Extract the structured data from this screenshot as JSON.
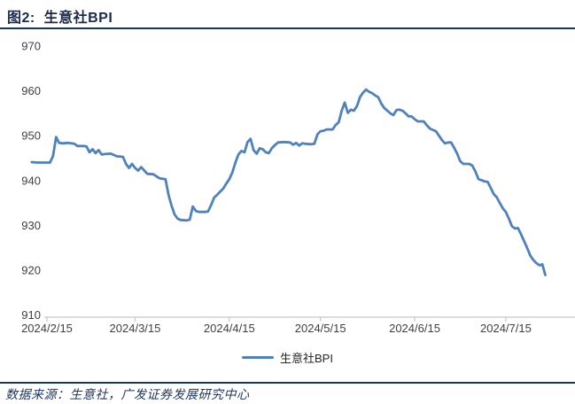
{
  "figure": {
    "title": "图2:  生意社BPI"
  },
  "legend": {
    "label": "生意社BPI"
  },
  "footer": {
    "source": "数据来源：生意社，广发证券发展研究中心"
  },
  "colors": {
    "line": "#4f81bd",
    "title_text": "#1b2a4e",
    "rule": "#17375e",
    "axis": "#c8c8c8",
    "tick_label": "#3f3f3f",
    "footer_text": "#1f3864"
  },
  "chart_data": {
    "type": "line",
    "title": "图2: 生意社BPI",
    "xlabel": "",
    "ylabel": "",
    "ylim": [
      910,
      970
    ],
    "y_ticks": [
      910,
      920,
      930,
      940,
      950,
      960,
      970
    ],
    "x_ticks": [
      "2024/2/15",
      "2024/3/15",
      "2024/4/15",
      "2024/5/15",
      "2024/6/15",
      "2024/7/15"
    ],
    "grid": false,
    "legend_position": "bottom",
    "series": [
      {
        "name": "生意社BPI",
        "points": [
          [
            "2024/2/10",
            944.1
          ],
          [
            "2024/2/12",
            944.0
          ],
          [
            "2024/2/14",
            944.0
          ],
          [
            "2024/2/16",
            944.0
          ],
          [
            "2024/2/17",
            945.5
          ],
          [
            "2024/2/18",
            949.7
          ],
          [
            "2024/2/19",
            948.4
          ],
          [
            "2024/2/20",
            948.3
          ],
          [
            "2024/2/22",
            948.4
          ],
          [
            "2024/2/24",
            948.2
          ],
          [
            "2024/2/25",
            947.7
          ],
          [
            "2024/2/27",
            947.7
          ],
          [
            "2024/2/28",
            947.6
          ],
          [
            "2024/2/29",
            946.3
          ],
          [
            "2024/3/1",
            947.0
          ],
          [
            "2024/3/2",
            946.1
          ],
          [
            "2024/3/3",
            946.8
          ],
          [
            "2024/3/4",
            945.8
          ],
          [
            "2024/3/5",
            945.9
          ],
          [
            "2024/3/7",
            946.0
          ],
          [
            "2024/3/9",
            945.4
          ],
          [
            "2024/3/11",
            945.3
          ],
          [
            "2024/3/12",
            943.7
          ],
          [
            "2024/3/13",
            942.8
          ],
          [
            "2024/3/14",
            943.7
          ],
          [
            "2024/3/15",
            942.8
          ],
          [
            "2024/3/16",
            942.2
          ],
          [
            "2024/3/17",
            943.0
          ],
          [
            "2024/3/19",
            941.5
          ],
          [
            "2024/3/21",
            941.4
          ],
          [
            "2024/3/23",
            940.5
          ],
          [
            "2024/3/25",
            940.3
          ],
          [
            "2024/3/26",
            936.8
          ],
          [
            "2024/3/27",
            934.4
          ],
          [
            "2024/3/28",
            932.4
          ],
          [
            "2024/3/29",
            931.5
          ],
          [
            "2024/3/30",
            931.2
          ],
          [
            "2024/4/1",
            931.1
          ],
          [
            "2024/4/2",
            931.3
          ],
          [
            "2024/4/3",
            934.2
          ],
          [
            "2024/4/4",
            933.2
          ],
          [
            "2024/4/5",
            933.0
          ],
          [
            "2024/4/7",
            933.0
          ],
          [
            "2024/4/8",
            933.1
          ],
          [
            "2024/4/9",
            934.5
          ],
          [
            "2024/4/10",
            936.2
          ],
          [
            "2024/4/11",
            936.8
          ],
          [
            "2024/4/13",
            938.2
          ],
          [
            "2024/4/14",
            939.3
          ],
          [
            "2024/4/15",
            940.3
          ],
          [
            "2024/4/16",
            941.8
          ],
          [
            "2024/4/17",
            944.0
          ],
          [
            "2024/4/18",
            945.8
          ],
          [
            "2024/4/19",
            946.6
          ],
          [
            "2024/4/20",
            946.3
          ],
          [
            "2024/4/21",
            948.6
          ],
          [
            "2024/4/22",
            949.3
          ],
          [
            "2024/4/23",
            946.8
          ],
          [
            "2024/4/24",
            946.0
          ],
          [
            "2024/4/25",
            947.2
          ],
          [
            "2024/4/26",
            947.0
          ],
          [
            "2024/4/27",
            946.3
          ],
          [
            "2024/4/28",
            946.1
          ],
          [
            "2024/4/29",
            947.2
          ],
          [
            "2024/4/30",
            947.9
          ],
          [
            "2024/5/1",
            948.5
          ],
          [
            "2024/5/3",
            948.6
          ],
          [
            "2024/5/5",
            948.5
          ],
          [
            "2024/5/6",
            948.0
          ],
          [
            "2024/5/7",
            948.4
          ],
          [
            "2024/5/8",
            947.8
          ],
          [
            "2024/5/9",
            948.3
          ],
          [
            "2024/5/10",
            948.2
          ],
          [
            "2024/5/12",
            948.1
          ],
          [
            "2024/5/13",
            948.2
          ],
          [
            "2024/5/14",
            950.3
          ],
          [
            "2024/5/15",
            951.0
          ],
          [
            "2024/5/16",
            951.1
          ],
          [
            "2024/5/17",
            951.4
          ],
          [
            "2024/5/19",
            951.4
          ],
          [
            "2024/5/20",
            952.4
          ],
          [
            "2024/5/21",
            953.0
          ],
          [
            "2024/5/22",
            955.6
          ],
          [
            "2024/5/23",
            957.4
          ],
          [
            "2024/5/24",
            955.1
          ],
          [
            "2024/5/25",
            955.8
          ],
          [
            "2024/5/26",
            955.6
          ],
          [
            "2024/5/27",
            956.6
          ],
          [
            "2024/5/28",
            958.6
          ],
          [
            "2024/5/29",
            959.6
          ],
          [
            "2024/5/30",
            960.3
          ],
          [
            "2024/5/31",
            959.8
          ],
          [
            "2024/6/1",
            959.5
          ],
          [
            "2024/6/2",
            959.0
          ],
          [
            "2024/6/3",
            958.6
          ],
          [
            "2024/6/4",
            957.2
          ],
          [
            "2024/6/5",
            956.2
          ],
          [
            "2024/6/6",
            955.6
          ],
          [
            "2024/6/7",
            955.0
          ],
          [
            "2024/6/8",
            954.6
          ],
          [
            "2024/6/9",
            955.7
          ],
          [
            "2024/6/10",
            955.8
          ],
          [
            "2024/6/11",
            955.6
          ],
          [
            "2024/6/12",
            955.0
          ],
          [
            "2024/6/13",
            954.3
          ],
          [
            "2024/6/14",
            954.3
          ],
          [
            "2024/6/15",
            953.7
          ],
          [
            "2024/6/16",
            953.2
          ],
          [
            "2024/6/18",
            953.2
          ],
          [
            "2024/6/19",
            952.3
          ],
          [
            "2024/6/20",
            951.6
          ],
          [
            "2024/6/21",
            951.3
          ],
          [
            "2024/6/22",
            951.0
          ],
          [
            "2024/6/23",
            950.0
          ],
          [
            "2024/6/24",
            949.0
          ],
          [
            "2024/6/25",
            948.3
          ],
          [
            "2024/6/26",
            948.5
          ],
          [
            "2024/6/27",
            948.5
          ],
          [
            "2024/6/28",
            947.3
          ],
          [
            "2024/6/29",
            946.0
          ],
          [
            "2024/6/30",
            944.3
          ],
          [
            "2024/7/1",
            943.7
          ],
          [
            "2024/7/3",
            943.7
          ],
          [
            "2024/7/4",
            943.3
          ],
          [
            "2024/7/5",
            942.0
          ],
          [
            "2024/7/6",
            940.3
          ],
          [
            "2024/7/7",
            940.1
          ],
          [
            "2024/7/8",
            939.8
          ],
          [
            "2024/7/9",
            939.7
          ],
          [
            "2024/7/10",
            938.4
          ],
          [
            "2024/7/11",
            937.0
          ],
          [
            "2024/7/12",
            936.3
          ],
          [
            "2024/7/13",
            935.0
          ],
          [
            "2024/7/14",
            933.8
          ],
          [
            "2024/7/15",
            933.0
          ],
          [
            "2024/7/16",
            931.5
          ],
          [
            "2024/7/17",
            929.8
          ],
          [
            "2024/7/18",
            929.3
          ],
          [
            "2024/7/19",
            929.4
          ],
          [
            "2024/7/20",
            928.0
          ],
          [
            "2024/7/21",
            926.5
          ],
          [
            "2024/7/22",
            925.0
          ],
          [
            "2024/7/23",
            923.3
          ],
          [
            "2024/7/24",
            922.3
          ],
          [
            "2024/7/25",
            921.6
          ],
          [
            "2024/7/26",
            921.1
          ],
          [
            "2024/7/27",
            921.3
          ],
          [
            "2024/7/28",
            918.9
          ]
        ]
      }
    ]
  }
}
